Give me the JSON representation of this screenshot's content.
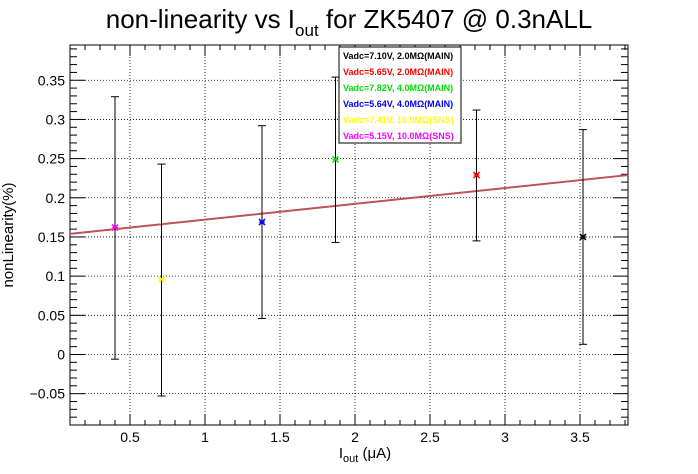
{
  "chart_data": {
    "type": "scatter",
    "title": {
      "main": "non-linearity vs I",
      "sub": "out",
      "rest": " for ZK5407 @ 0.3nALL"
    },
    "xlabel": {
      "main": "I",
      "sub": "out",
      "rest": " (μA)"
    },
    "ylabel": "nonLinearity(%)",
    "xlim": [
      0.1,
      3.82
    ],
    "ylim": [
      -0.09,
      0.395
    ],
    "xticks": [
      0.5,
      1,
      1.5,
      2,
      2.5,
      3,
      3.5
    ],
    "xtick_labels": [
      "0.5",
      "1",
      "1.5",
      "2",
      "2.5",
      "3",
      "3.5"
    ],
    "yticks": [
      -0.05,
      0,
      0.05,
      0.1,
      0.15,
      0.2,
      0.25,
      0.3,
      0.35
    ],
    "ytick_labels": [
      "−0.05",
      "0",
      "0.05",
      "0.1",
      "0.15",
      "0.2",
      "0.25",
      "0.3",
      "0.35"
    ],
    "grid": true,
    "legend_position": "top-center",
    "fit_line": {
      "color": "#c0505a",
      "x": [
        0.1,
        3.82
      ],
      "y": [
        0.154,
        0.229
      ]
    },
    "series": [
      {
        "name": "Vadc=7.10V, 2.0MΩ(MAIN)",
        "color": "#000000",
        "points": [
          {
            "x": 3.52,
            "y": 0.15,
            "ylow": 0.013,
            "yhigh": 0.287
          }
        ]
      },
      {
        "name": "Vadc=5.65V, 2.0MΩ(MAIN)",
        "color": "#ff0000",
        "points": [
          {
            "x": 2.81,
            "y": 0.229,
            "ylow": 0.145,
            "yhigh": 0.312
          }
        ]
      },
      {
        "name": "Vadc=7.82V, 4.0MΩ(MAIN)",
        "color": "#00dd00",
        "points": [
          {
            "x": 1.87,
            "y": 0.249,
            "ylow": 0.143,
            "yhigh": 0.354
          }
        ]
      },
      {
        "name": "Vadc=5.64V, 4.0MΩ(MAIN)",
        "color": "#0000ff",
        "points": [
          {
            "x": 1.38,
            "y": 0.169,
            "ylow": 0.046,
            "yhigh": 0.292
          }
        ]
      },
      {
        "name": "Vadc=7.41V, 10.0MΩ(SNS)",
        "color": "#ffff00",
        "points": [
          {
            "x": 0.71,
            "y": 0.096,
            "ylow": -0.053,
            "yhigh": 0.243
          }
        ]
      },
      {
        "name": "Vadc=5.15V, 10.0MΩ(SNS)",
        "color": "#ff00ff",
        "points": [
          {
            "x": 0.4,
            "y": 0.162,
            "ylow": -0.006,
            "yhigh": 0.329
          }
        ]
      }
    ]
  }
}
